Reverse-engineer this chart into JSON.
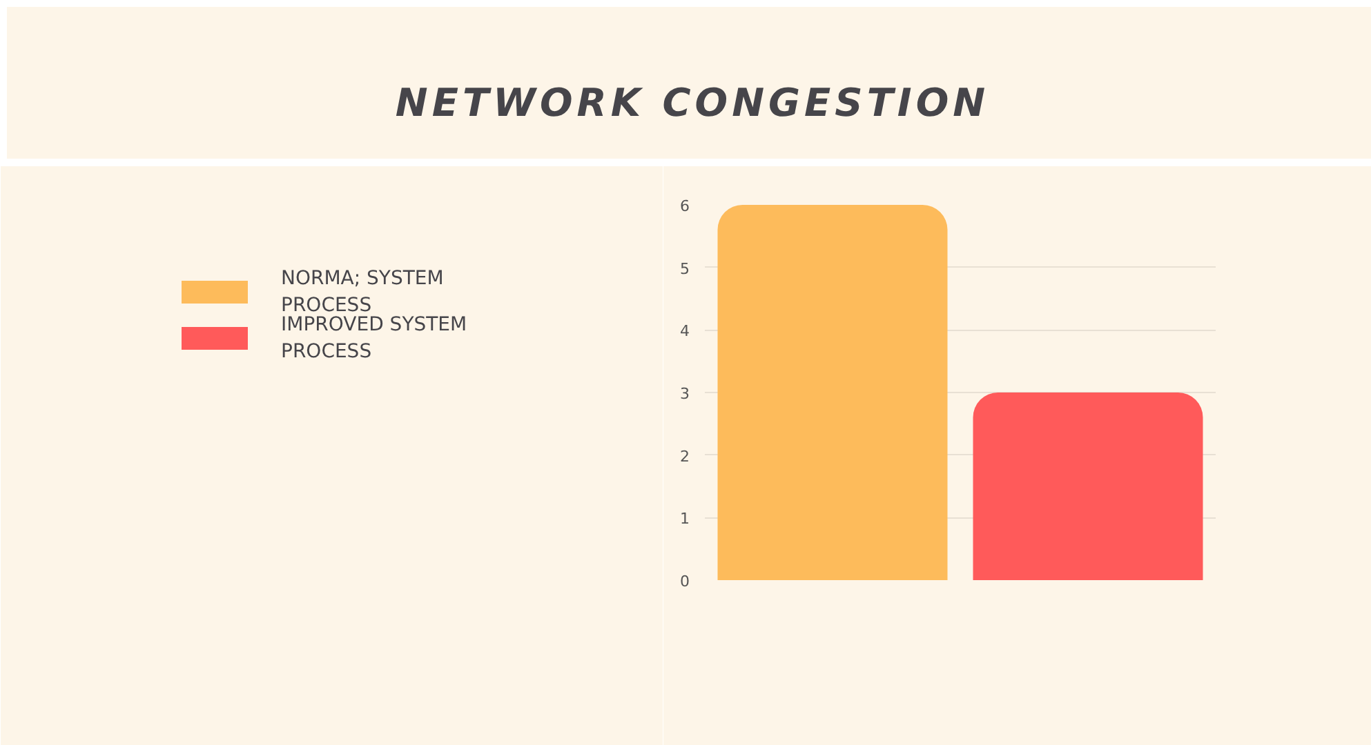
{
  "chart_data": {
    "type": "bar",
    "title": "NETWORK CONGESTION",
    "categories": [
      null,
      null
    ],
    "series": [
      {
        "name": "NORMA; SYSTEM PROCESS",
        "color": "#fdbb5b",
        "values": [
          6,
          null
        ]
      },
      {
        "name": "IMPROVED SYSTEM PROCESS",
        "color": "#ff5a5a",
        "values": [
          null,
          3
        ]
      }
    ],
    "ylim": [
      0,
      6
    ],
    "yticks": [
      0,
      1,
      2,
      3,
      4,
      5,
      6
    ],
    "grid": "y",
    "legend": "left",
    "tick_labels": "y"
  }
}
